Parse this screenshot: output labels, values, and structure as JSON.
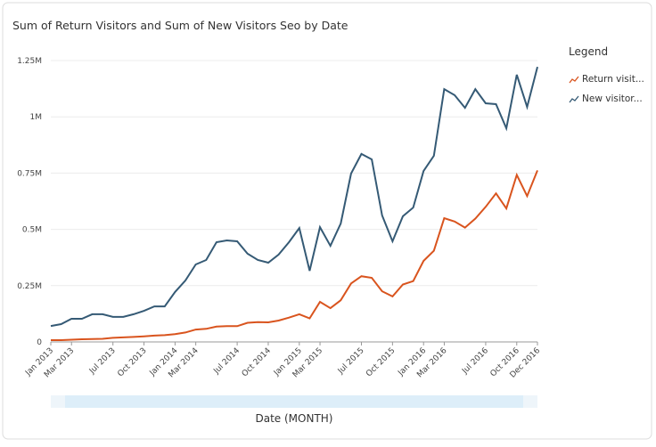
{
  "chart_data": {
    "type": "line",
    "title": "Sum of Return Visitors and Sum of New Visitors Seo by Date",
    "x_label": "Date (MONTH)",
    "legend_title": "Legend",
    "legend": "right",
    "grid": true,
    "categories": [
      "Jan 2013",
      null,
      "Mar 2013",
      null,
      null,
      null,
      "Jul 2013",
      null,
      null,
      "Oct 2013",
      null,
      null,
      "Jan 2014",
      null,
      "Mar 2014",
      null,
      null,
      null,
      "Jul 2014",
      null,
      null,
      "Oct 2014",
      null,
      null,
      "Jan 2015",
      null,
      "Mar 2015",
      null,
      null,
      null,
      "Jul 2015",
      null,
      null,
      "Oct 2015",
      null,
      null,
      "Jan 2016",
      null,
      "Mar 2016",
      null,
      null,
      null,
      "Jul 2016",
      null,
      null,
      "Oct 2016",
      null,
      "Dec 2016"
    ],
    "ylim": [
      0,
      1250000
    ],
    "yticks": [
      0,
      {
        "value": 250000,
        "label": "0.25M"
      },
      {
        "value": 500000,
        "label": "0.5M"
      },
      {
        "value": 750000,
        "label": "0.75M"
      },
      {
        "value": 1000000,
        "label": "1M"
      },
      {
        "value": 1250000,
        "label": "1.25M"
      }
    ],
    "series": [
      {
        "name": "Return visit...",
        "color": "#d9541e",
        "values": [
          8000,
          8000,
          10000,
          12000,
          13000,
          14000,
          18000,
          20000,
          22000,
          25000,
          28000,
          30000,
          35000,
          42000,
          55000,
          58000,
          68000,
          70000,
          70000,
          85000,
          88000,
          87000,
          95000,
          108000,
          123000,
          105000,
          178000,
          150000,
          185000,
          260000,
          292000,
          285000,
          225000,
          202000,
          255000,
          270000,
          360000,
          405000,
          550000,
          535000,
          508000,
          548000,
          600000,
          660000,
          593000,
          742000,
          648000,
          762000
        ]
      },
      {
        "name": "New visitor...",
        "color": "#355a75",
        "values": [
          71000,
          79000,
          103000,
          103000,
          123000,
          123000,
          111000,
          111000,
          123000,
          138000,
          158000,
          158000,
          222000,
          273000,
          344000,
          364000,
          443000,
          451000,
          447000,
          392000,
          364000,
          352000,
          388000,
          443000,
          506000,
          316000,
          510000,
          427000,
          526000,
          748000,
          835000,
          811000,
          562000,
          447000,
          558000,
          597000,
          759000,
          827000,
          1123000,
          1096000,
          1040000,
          1123000,
          1060000,
          1056000,
          949000,
          1187000,
          1044000,
          1222000
        ]
      }
    ]
  }
}
